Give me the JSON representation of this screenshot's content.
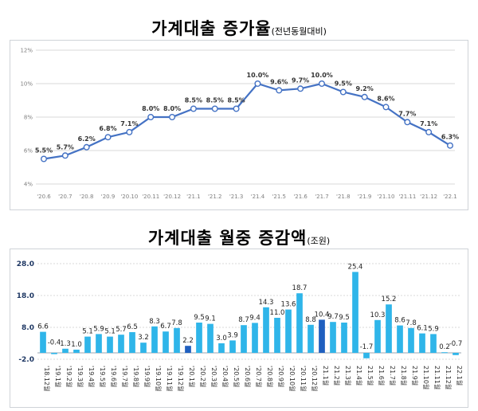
{
  "titles": {
    "top": "가계대출 증가율",
    "top_sub": "(전년동월대비)",
    "bottom": "가계대출 월중 증감액",
    "bottom_sub": "(조원)"
  },
  "colors": {
    "line": "#4472c4",
    "bar": "#2fb5e9",
    "bar_highlight": "#1f5fbf",
    "grid": "#d9d9d9"
  },
  "chart_data": [
    {
      "type": "line",
      "categories": [
        "'20.6",
        "'20.7",
        "'20.8",
        "'20.9",
        "'20.10",
        "'20.11",
        "'20.12",
        "'21.1",
        "'21.2",
        "'21.3",
        "'21.4",
        "'21.5",
        "'21.6",
        "'21.7",
        "'21.8",
        "'21.9",
        "'21.10",
        "'21.11",
        "'21.12",
        "'22.1"
      ],
      "values": [
        5.5,
        5.7,
        6.2,
        6.8,
        7.1,
        8.0,
        8.0,
        8.5,
        8.5,
        8.5,
        10.0,
        9.6,
        9.7,
        10.0,
        9.5,
        9.2,
        8.6,
        7.7,
        7.1,
        6.3
      ],
      "labels": [
        "5.5%",
        "5.7%",
        "6.2%",
        "6.8%",
        "7.1%",
        "8.0%",
        "8.0%",
        "8.5%",
        "8.5%",
        "8.5%",
        "10.0%",
        "9.6%",
        "9.7%",
        "10.0%",
        "9.5%",
        "9.2%",
        "8.6%",
        "7.7%",
        "7.1%",
        "6.3%"
      ],
      "yticks": [
        "4%",
        "6%",
        "8%",
        "10%",
        "12%"
      ],
      "ylim": [
        4,
        12
      ],
      "grid": true
    },
    {
      "type": "bar",
      "categories": [
        "'18.12월",
        "'19.1월",
        "'19.2월",
        "'19.3월",
        "'19.4월",
        "'19.5월",
        "'19.6월",
        "'19.7월",
        "'19.8월",
        "'19.9월",
        "'19.10월",
        "'19.11월",
        "'19.12월",
        "'20.1월",
        "'20.2월",
        "'20.3월",
        "'20.4월",
        "'20.5월",
        "'20.6월",
        "'20.7월",
        "'20.8월",
        "'20.9월",
        "'20.10월",
        "'20.11월",
        "'20.12월",
        "21.1월",
        "21.2월",
        "21.3월",
        "21.4월",
        "21.5월",
        "21.6월",
        "21.7월",
        "21.8월",
        "21.9월",
        "21.10월",
        "21.11월",
        "21.12월",
        "22.1월"
      ],
      "values": [
        6.6,
        -0.4,
        1.3,
        1.0,
        5.1,
        5.9,
        5.1,
        5.7,
        6.5,
        3.2,
        8.3,
        6.7,
        7.8,
        2.2,
        9.5,
        9.1,
        3.0,
        3.9,
        8.7,
        9.4,
        14.3,
        11.0,
        13.6,
        18.7,
        8.8,
        10.4,
        9.7,
        9.5,
        25.4,
        -1.7,
        10.3,
        15.2,
        8.6,
        7.8,
        6.1,
        5.9,
        0.2,
        -0.7
      ],
      "labels": [
        "6.6",
        "-0.4",
        "1.3",
        "1.0",
        "5.1",
        "5.9",
        "5.1",
        "5.7",
        "6.5",
        "3.2",
        "8.3",
        "6.7",
        "7.8",
        "2.2",
        "9.5",
        "9.1",
        "3.0",
        "3.9",
        "8.7",
        "9.4",
        "14.3",
        "11.0",
        "13.6",
        "18.7",
        "8.8",
        "10.4",
        "9.7",
        "9.5",
        "25.4",
        "-1.7",
        "10.3",
        "15.2",
        "8.6",
        "7.8",
        "6.1",
        "5.9",
        "0.2",
        "-0.7"
      ],
      "highlight": [
        "'20.1월",
        "21.1월"
      ],
      "yticks": [
        "28.0",
        "18.0",
        "8.0",
        "-2.0"
      ],
      "ylim": [
        -2,
        28
      ],
      "grid": true
    }
  ]
}
